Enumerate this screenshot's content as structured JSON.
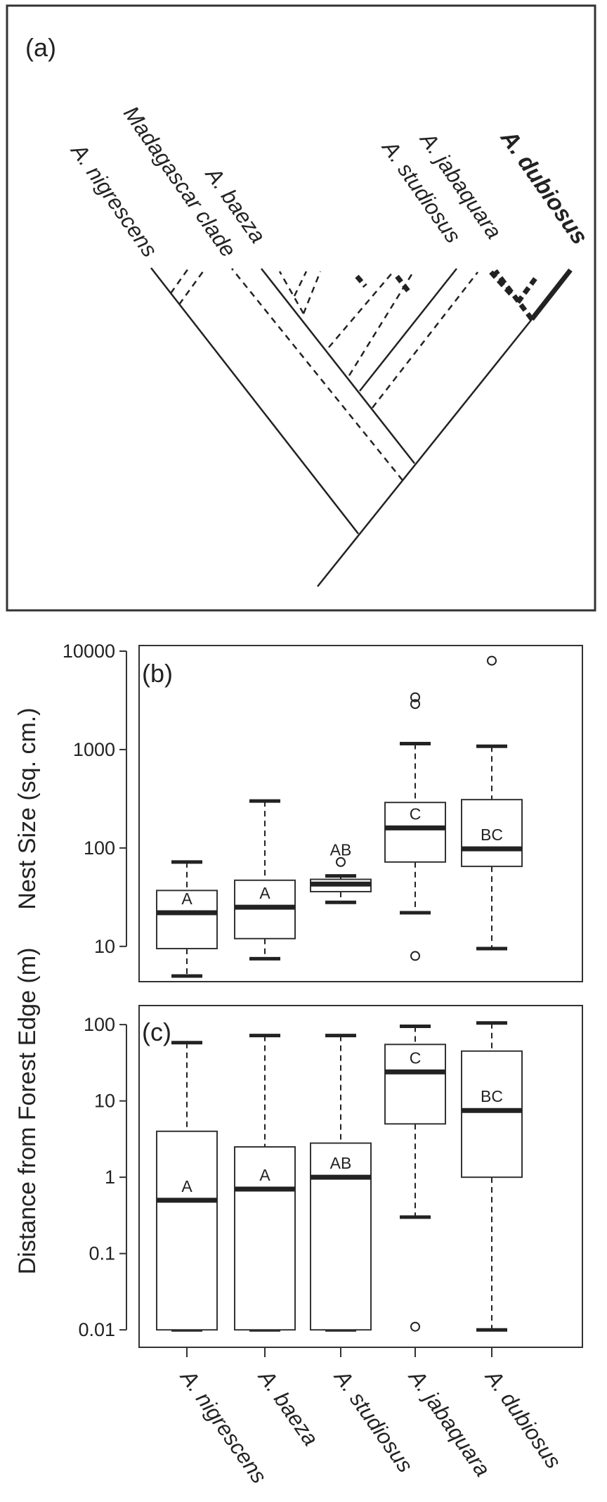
{
  "panel_a": {
    "label": "(a)",
    "taxa": {
      "nigrescens": "A. nigrescens",
      "madagascar": "Madagascar clade",
      "baeza": "A. baeza",
      "studiosus": "A. studiosus",
      "jabaquara": "A. jabaquara",
      "dubiosus": "A. dubiosus"
    }
  },
  "chart_data": [
    {
      "type": "box",
      "panel_label": "(b)",
      "ylabel": "Nest Size (sq. cm.)",
      "yscale": "log",
      "ylim": [
        5,
        10000
      ],
      "yticks": [
        10,
        100,
        1000,
        10000
      ],
      "ytick_labels": [
        "10",
        "100",
        "1000",
        "10000"
      ],
      "categories": [
        "A. nigrescens",
        "A. baeza",
        "A. studiosus",
        "A. jabaquara",
        "A. dubiosus"
      ],
      "boxes": [
        {
          "category": "A. nigrescens",
          "whisker_low": 5,
          "q1": 9.5,
          "median": 22,
          "q3": 37,
          "whisker_high": 72,
          "outliers": [],
          "letter": "A"
        },
        {
          "category": "A. baeza",
          "whisker_low": 7.5,
          "q1": 12,
          "median": 25,
          "q3": 47,
          "whisker_high": 300,
          "outliers": [],
          "letter": "A"
        },
        {
          "category": "A. studiosus",
          "whisker_low": 28,
          "q1": 36,
          "median": 43,
          "q3": 48,
          "whisker_high": 52,
          "outliers": [
            72
          ],
          "letter": "AB"
        },
        {
          "category": "A. jabaquara",
          "whisker_low": 22,
          "q1": 72,
          "median": 160,
          "q3": 290,
          "whisker_high": 1150,
          "outliers": [
            8,
            2900,
            3400
          ],
          "letter": "C"
        },
        {
          "category": "A. dubiosus",
          "whisker_low": 9.5,
          "q1": 65,
          "median": 98,
          "q3": 310,
          "whisker_high": 1080,
          "outliers": [
            8000
          ],
          "letter": "BC"
        }
      ]
    },
    {
      "type": "box",
      "panel_label": "(c)",
      "ylabel": "Distance from Forest Edge (m)",
      "yscale": "log",
      "ylim": [
        0.007,
        150
      ],
      "yticks": [
        0.01,
        0.1,
        1,
        10,
        100
      ],
      "ytick_labels": [
        "0.01",
        "0.1",
        "1",
        "10",
        "100"
      ],
      "categories": [
        "A. nigrescens",
        "A. baeza",
        "A. studiosus",
        "A. jabaquara",
        "A. dubiosus"
      ],
      "boxes": [
        {
          "category": "A. nigrescens",
          "whisker_low": 0.01,
          "q1": 0.01,
          "median": 0.5,
          "q3": 4,
          "whisker_high": 58,
          "outliers": [],
          "letter": "A"
        },
        {
          "category": "A. baeza",
          "whisker_low": 0.01,
          "q1": 0.01,
          "median": 0.7,
          "q3": 2.5,
          "whisker_high": 72,
          "outliers": [],
          "letter": "A"
        },
        {
          "category": "A. studiosus",
          "whisker_low": 0.01,
          "q1": 0.01,
          "median": 1,
          "q3": 2.8,
          "whisker_high": 72,
          "outliers": [],
          "letter": "AB"
        },
        {
          "category": "A. jabaquara",
          "whisker_low": 0.3,
          "q1": 5,
          "median": 24,
          "q3": 55,
          "whisker_high": 95,
          "outliers": [
            0.011
          ],
          "letter": "C"
        },
        {
          "category": "A. dubiosus",
          "whisker_low": 0.01,
          "q1": 1,
          "median": 7.5,
          "q3": 45,
          "whisker_high": 105,
          "outliers": [],
          "letter": "BC"
        }
      ]
    }
  ]
}
